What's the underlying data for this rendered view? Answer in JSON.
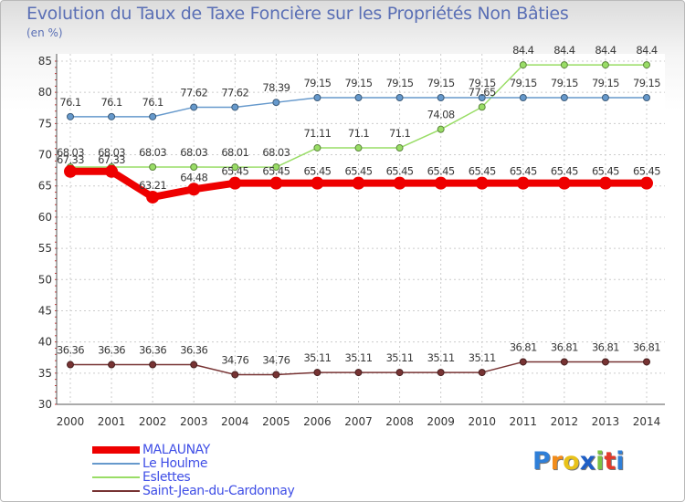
{
  "chart_data": {
    "type": "line",
    "title": "Evolution du Taux de Taxe Foncière sur les Propriétés Non Bâties",
    "ylabel": "(en %)",
    "xlabel": "",
    "ylim": [
      30,
      85
    ],
    "yticks": [
      30,
      35,
      40,
      45,
      50,
      55,
      60,
      65,
      70,
      75,
      80,
      85
    ],
    "categories": [
      "2000",
      "2001",
      "2002",
      "2003",
      "2004",
      "2005",
      "2006",
      "2007",
      "2008",
      "2009",
      "2010",
      "2011",
      "2012",
      "2013",
      "2014"
    ],
    "grid": true,
    "series": [
      {
        "name": "MALAUNAY",
        "color": "#ee0000",
        "values": [
          67.33,
          67.33,
          63.21,
          64.48,
          65.45,
          65.45,
          65.45,
          65.45,
          65.45,
          65.45,
          65.45,
          65.45,
          65.45,
          65.45,
          65.45
        ],
        "labels": [
          "67.33",
          "67.33",
          "63.21",
          "64.48",
          "65.45",
          "65.45",
          "65.45",
          "65.45",
          "65.45",
          "65.45",
          "65.45",
          "65.45",
          "65.45",
          "65.45",
          "65.45"
        ]
      },
      {
        "name": "Le Houlme",
        "color": "#6699cc",
        "values": [
          76.1,
          76.1,
          76.1,
          77.62,
          77.62,
          78.39,
          79.15,
          79.15,
          79.15,
          79.15,
          79.15,
          79.15,
          79.15,
          79.15,
          79.15
        ],
        "labels": [
          "76.1",
          "76.1",
          "76.1",
          "77.62",
          "77.62",
          "78.39",
          "79.15",
          "79.15",
          "79.15",
          "79.15",
          "79.15",
          "79.15",
          "79.15",
          "79.15",
          "79.15"
        ]
      },
      {
        "name": "Eslettes",
        "color": "#99dd66",
        "values": [
          68.03,
          68.03,
          68.03,
          68.03,
          68.01,
          68.03,
          71.11,
          71.1,
          71.1,
          74.08,
          77.65,
          84.4,
          84.4,
          84.4,
          84.4
        ],
        "labels": [
          "68.03",
          "68.03",
          "68.03",
          "68.03",
          "68.01",
          "68.03",
          "71.11",
          "71.1",
          "71.1",
          "74.08",
          "77.65",
          "84.4",
          "84.4",
          "84.4",
          "84.4"
        ]
      },
      {
        "name": "Saint-Jean-du-Cardonnay",
        "color": "#773333",
        "values": [
          36.36,
          36.36,
          36.36,
          36.36,
          34.76,
          34.76,
          35.11,
          35.11,
          35.11,
          35.11,
          35.11,
          36.81,
          36.81,
          36.81,
          36.81
        ],
        "labels": [
          "36.36",
          "36.36",
          "36.36",
          "36.36",
          "34.76",
          "34.76",
          "35.11",
          "35.11",
          "35.11",
          "35.11",
          "35.11",
          "36.81",
          "36.81",
          "36.81",
          "36.81"
        ]
      }
    ]
  },
  "brand": {
    "letters": [
      "P",
      "r",
      "o",
      "x",
      "i",
      "t",
      "i"
    ],
    "colors": [
      "#2f7fd8",
      "#f28c1a",
      "#e8c21a",
      "#1f5fc6",
      "#7cc242",
      "#e33a2b",
      "#2f7fd8"
    ]
  }
}
